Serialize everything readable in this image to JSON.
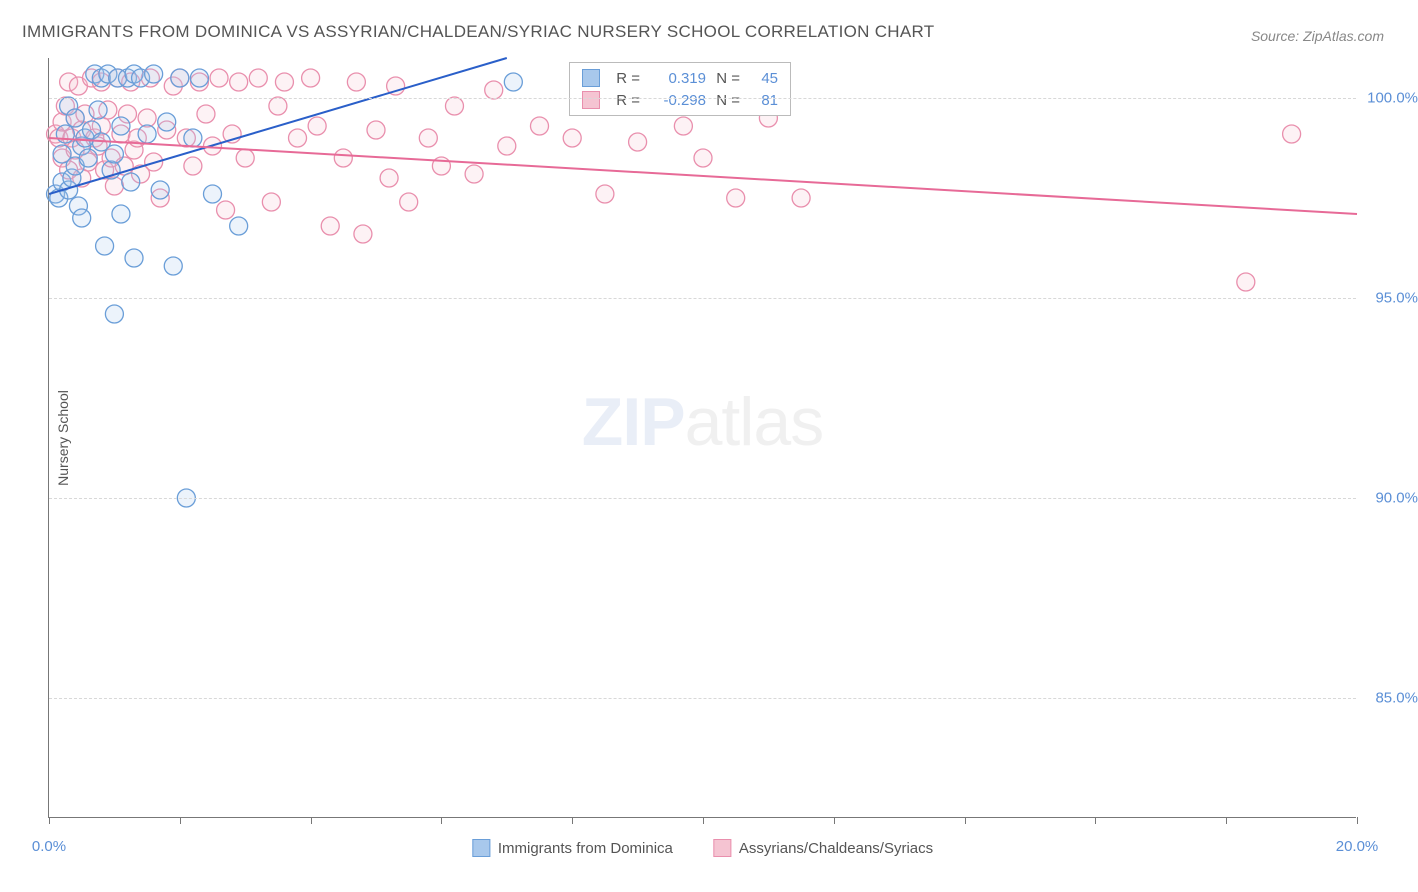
{
  "title": "IMMIGRANTS FROM DOMINICA VS ASSYRIAN/CHALDEAN/SYRIAC NURSERY SCHOOL CORRELATION CHART",
  "source": "Source: ZipAtlas.com",
  "watermark_zip": "ZIP",
  "watermark_atlas": "atlas",
  "chart": {
    "type": "scatter",
    "y_axis_title": "Nursery School",
    "xlim": [
      0,
      20
    ],
    "ylim": [
      82,
      101
    ],
    "y_ticks": [
      85.0,
      90.0,
      95.0,
      100.0
    ],
    "y_tick_labels": [
      "85.0%",
      "90.0%",
      "95.0%",
      "100.0%"
    ],
    "x_ticks": [
      0,
      2,
      4,
      6,
      8,
      10,
      12,
      14,
      16,
      18,
      20
    ],
    "x_tick_labels": {
      "0": "0.0%",
      "20": "20.0%"
    },
    "marker_radius": 9,
    "marker_fill_opacity": 0.22,
    "marker_stroke_width": 1.3,
    "line_width": 2,
    "grid_color": "#d8d8d8",
    "background_color": "#ffffff",
    "series": [
      {
        "name": "Immigrants from Dominica",
        "color_fill": "#a8c8ec",
        "color_stroke": "#6a9ed8",
        "color_line": "#2a5fc9",
        "r_label": "R =",
        "r_value": "0.319",
        "n_label": "N =",
        "n_value": "45",
        "trend": {
          "x1": 0,
          "y1": 97.6,
          "x2": 7.0,
          "y2": 101.0
        },
        "points": [
          [
            0.1,
            97.6
          ],
          [
            0.15,
            97.5
          ],
          [
            0.2,
            97.9
          ],
          [
            0.2,
            98.6
          ],
          [
            0.25,
            99.1
          ],
          [
            0.3,
            99.8
          ],
          [
            0.3,
            97.7
          ],
          [
            0.35,
            98.0
          ],
          [
            0.4,
            98.3
          ],
          [
            0.4,
            99.5
          ],
          [
            0.45,
            97.3
          ],
          [
            0.5,
            98.8
          ],
          [
            0.5,
            97.0
          ],
          [
            0.55,
            99.0
          ],
          [
            0.6,
            98.5
          ],
          [
            0.65,
            99.2
          ],
          [
            0.7,
            100.6
          ],
          [
            0.75,
            99.7
          ],
          [
            0.8,
            100.5
          ],
          [
            0.8,
            98.9
          ],
          [
            0.85,
            96.3
          ],
          [
            0.9,
            100.6
          ],
          [
            0.95,
            98.2
          ],
          [
            1.0,
            98.6
          ],
          [
            1.0,
            94.6
          ],
          [
            1.05,
            100.5
          ],
          [
            1.1,
            99.3
          ],
          [
            1.2,
            100.5
          ],
          [
            1.25,
            97.9
          ],
          [
            1.3,
            100.6
          ],
          [
            1.3,
            96.0
          ],
          [
            1.4,
            100.5
          ],
          [
            1.5,
            99.1
          ],
          [
            1.6,
            100.6
          ],
          [
            1.7,
            97.7
          ],
          [
            1.8,
            99.4
          ],
          [
            1.9,
            95.8
          ],
          [
            2.0,
            100.5
          ],
          [
            2.2,
            99.0
          ],
          [
            2.3,
            100.5
          ],
          [
            2.5,
            97.6
          ],
          [
            2.9,
            96.8
          ],
          [
            2.1,
            90.0
          ],
          [
            7.1,
            100.4
          ],
          [
            1.1,
            97.1
          ]
        ]
      },
      {
        "name": "Assyrians/Chaldeans/Syriacs",
        "color_fill": "#f5c4d2",
        "color_stroke": "#e98fad",
        "color_line": "#e76a97",
        "r_label": "R =",
        "r_value": "-0.298",
        "n_label": "N =",
        "n_value": "81",
        "trend": {
          "x1": 0,
          "y1": 99.0,
          "x2": 20,
          "y2": 97.1
        },
        "points": [
          [
            0.1,
            99.1
          ],
          [
            0.15,
            99.0
          ],
          [
            0.2,
            99.4
          ],
          [
            0.2,
            98.5
          ],
          [
            0.25,
            99.8
          ],
          [
            0.3,
            100.4
          ],
          [
            0.3,
            98.2
          ],
          [
            0.35,
            99.0
          ],
          [
            0.4,
            99.5
          ],
          [
            0.4,
            98.7
          ],
          [
            0.45,
            100.3
          ],
          [
            0.5,
            99.2
          ],
          [
            0.5,
            98.0
          ],
          [
            0.55,
            99.6
          ],
          [
            0.6,
            98.4
          ],
          [
            0.65,
            100.5
          ],
          [
            0.7,
            99.0
          ],
          [
            0.75,
            98.8
          ],
          [
            0.8,
            99.3
          ],
          [
            0.8,
            100.4
          ],
          [
            0.85,
            98.2
          ],
          [
            0.9,
            99.7
          ],
          [
            0.95,
            98.5
          ],
          [
            1.0,
            97.8
          ],
          [
            1.05,
            100.5
          ],
          [
            1.1,
            99.1
          ],
          [
            1.15,
            98.3
          ],
          [
            1.2,
            99.6
          ],
          [
            1.25,
            100.4
          ],
          [
            1.3,
            98.7
          ],
          [
            1.35,
            99.0
          ],
          [
            1.4,
            98.1
          ],
          [
            1.5,
            99.5
          ],
          [
            1.55,
            100.5
          ],
          [
            1.6,
            98.4
          ],
          [
            1.7,
            97.5
          ],
          [
            1.8,
            99.2
          ],
          [
            1.9,
            100.3
          ],
          [
            2.0,
            100.5
          ],
          [
            2.1,
            99.0
          ],
          [
            2.2,
            98.3
          ],
          [
            2.3,
            100.4
          ],
          [
            2.4,
            99.6
          ],
          [
            2.5,
            98.8
          ],
          [
            2.6,
            100.5
          ],
          [
            2.7,
            97.2
          ],
          [
            2.8,
            99.1
          ],
          [
            2.9,
            100.4
          ],
          [
            3.0,
            98.5
          ],
          [
            3.2,
            100.5
          ],
          [
            3.4,
            97.4
          ],
          [
            3.5,
            99.8
          ],
          [
            3.6,
            100.4
          ],
          [
            3.8,
            99.0
          ],
          [
            4.0,
            100.5
          ],
          [
            4.1,
            99.3
          ],
          [
            4.3,
            96.8
          ],
          [
            4.5,
            98.5
          ],
          [
            4.7,
            100.4
          ],
          [
            4.8,
            96.6
          ],
          [
            5.0,
            99.2
          ],
          [
            5.2,
            98.0
          ],
          [
            5.3,
            100.3
          ],
          [
            5.5,
            97.4
          ],
          [
            5.8,
            99.0
          ],
          [
            6.0,
            98.3
          ],
          [
            6.2,
            99.8
          ],
          [
            6.5,
            98.1
          ],
          [
            6.8,
            100.2
          ],
          [
            7.0,
            98.8
          ],
          [
            7.5,
            99.3
          ],
          [
            8.0,
            99.0
          ],
          [
            8.5,
            97.6
          ],
          [
            9.0,
            98.9
          ],
          [
            9.7,
            99.3
          ],
          [
            10.0,
            98.5
          ],
          [
            10.5,
            97.5
          ],
          [
            11.0,
            99.5
          ],
          [
            11.5,
            97.5
          ],
          [
            18.3,
            95.4
          ],
          [
            19.0,
            99.1
          ]
        ]
      }
    ]
  }
}
